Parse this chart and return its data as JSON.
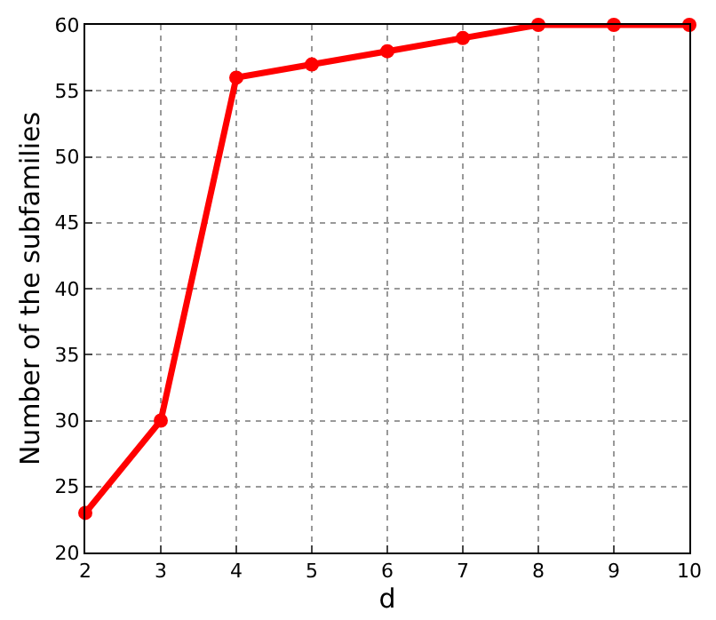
{
  "chart_data": {
    "type": "line",
    "xlabel": "d",
    "ylabel": "Number of the subfamilies",
    "x": [
      2,
      3,
      4,
      5,
      6,
      7,
      8,
      9,
      10
    ],
    "series": [
      {
        "color": "#ff0000",
        "values": [
          23,
          30,
          56,
          57,
          58,
          59,
          60,
          60,
          60
        ]
      }
    ],
    "xlim": [
      2,
      10
    ],
    "xticks": [
      2,
      3,
      4,
      5,
      6,
      7,
      8,
      9,
      10
    ],
    "ylim": [
      20,
      60
    ],
    "yticks": [
      20,
      25,
      30,
      35,
      40,
      45,
      50,
      55,
      60
    ],
    "grid": true,
    "marker": "circle",
    "line_style": "solid",
    "legend": false
  }
}
